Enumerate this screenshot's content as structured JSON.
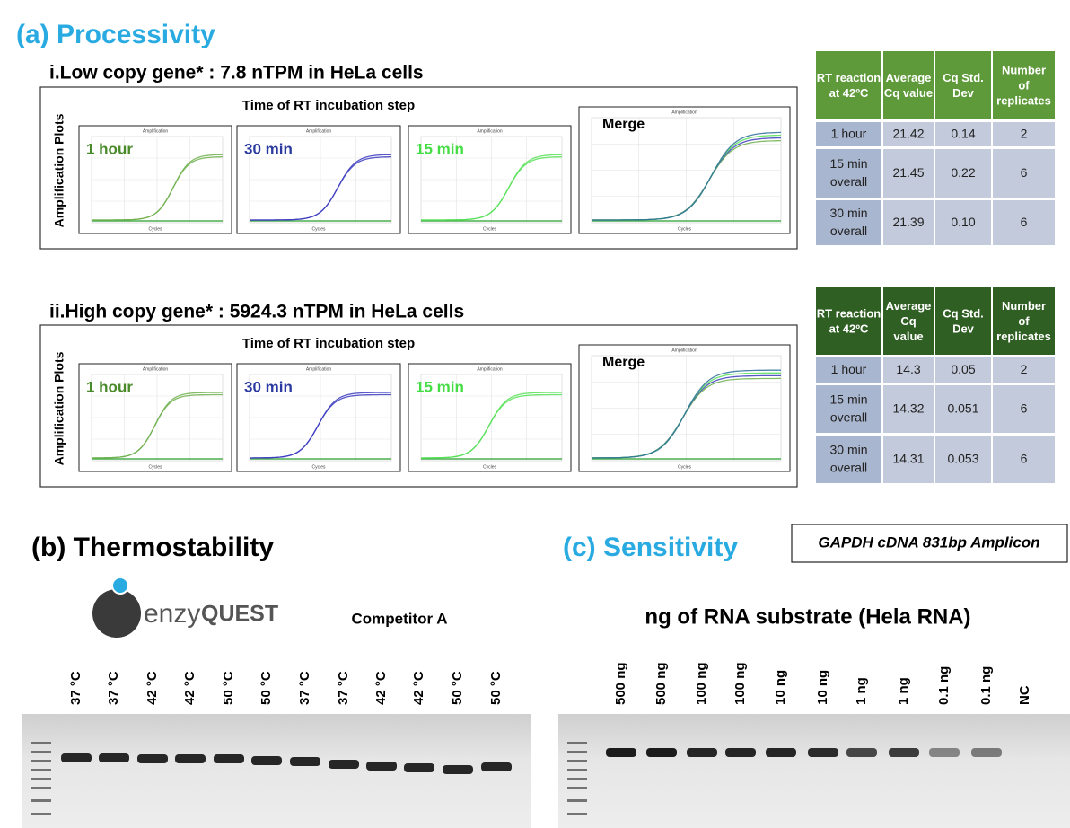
{
  "processivity": {
    "title": "(a) Processivity",
    "plot_title": "Amplification",
    "x_label": "Cycles",
    "panels": [
      {
        "title": "i.Low copy gene* : 7.8 nTPM in HeLa cells",
        "subtitle": "Time of RT incubation step",
        "y_label": "Amplification Plots",
        "plots": [
          "1 hour",
          "30 min",
          "15 min",
          "Merge"
        ],
        "table": {
          "header": [
            [
              "RT reaction",
              "at 42ºC"
            ],
            [
              "Average",
              "Cq value"
            ],
            [
              "Cq Std.",
              "Dev"
            ],
            [
              "Number",
              "of",
              "replicates"
            ]
          ],
          "rows": [
            [
              [
                "1 hour"
              ],
              [
                "21.42"
              ],
              [
                "0.14"
              ],
              [
                "2"
              ]
            ],
            [
              [
                "15 min",
                "overall"
              ],
              [
                "21.45"
              ],
              [
                "0.22"
              ],
              [
                "6"
              ]
            ],
            [
              [
                "30 min",
                "overall"
              ],
              [
                "21.39"
              ],
              [
                "0.10"
              ],
              [
                "6"
              ]
            ]
          ]
        }
      },
      {
        "title": "ii.High copy gene* : 5924.3 nTPM in HeLa cells",
        "subtitle": "Time of RT incubation step",
        "y_label": "Amplification Plots",
        "plots": [
          "1 hour",
          "30 min",
          "15 min",
          "Merge"
        ],
        "table": {
          "header": [
            [
              "RT reaction",
              "at 42ºC"
            ],
            [
              "Average",
              "Cq",
              "value"
            ],
            [
              "Cq Std.",
              "Dev"
            ],
            [
              "Number",
              "of",
              "replicates"
            ]
          ],
          "rows": [
            [
              [
                "1 hour"
              ],
              [
                "14.3"
              ],
              [
                "0.05"
              ],
              [
                "2"
              ]
            ],
            [
              [
                "15 min",
                "overall"
              ],
              [
                "14.32"
              ],
              [
                "0.051"
              ],
              [
                "6"
              ]
            ],
            [
              [
                "30 min",
                "overall"
              ],
              [
                "14.31"
              ],
              [
                "0.053"
              ],
              [
                "6"
              ]
            ]
          ]
        }
      }
    ]
  },
  "thermostability": {
    "title": "(b) Thermostability",
    "logo": [
      "enzy",
      "QUEST"
    ],
    "group_label": "Competitor A",
    "lanes": [
      "37 °C",
      "37 °C",
      "42 °C",
      "42 °C",
      "50 °C",
      "50 °C",
      "37 °C",
      "37 °C",
      "42 °C",
      "42 °C",
      "50 °C",
      "50 °C"
    ]
  },
  "sensitivity": {
    "title": "(c) Sensitivity",
    "amplicon": "GAPDH cDNA 831bp Amplicon",
    "axis_label": "ng of RNA substrate (Hela RNA)",
    "lanes": [
      "500 ng",
      "500 ng",
      "100 ng",
      "100 ng",
      "10 ng",
      "10 ng",
      "1 ng",
      "1 ng",
      "0.1 ng",
      "0.1 ng",
      "NC"
    ]
  }
}
